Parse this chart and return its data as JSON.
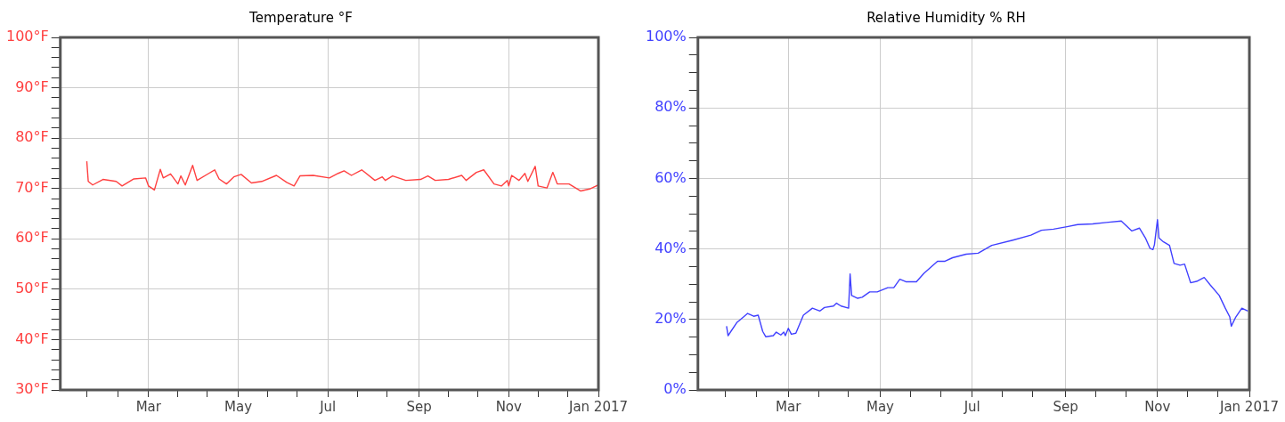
{
  "chart_data": [
    {
      "type": "line",
      "title": "Temperature °F",
      "xlim": [
        "2016-01-01",
        "2017-01-01"
      ],
      "xticks": [
        {
          "value": "2016-01-19",
          "label": null
        },
        {
          "value": "2016-02-09",
          "label": null
        },
        {
          "value": "2016-03-01",
          "label": "Mar"
        },
        {
          "value": "2016-03-21",
          "label": null
        },
        {
          "value": "2016-04-10",
          "label": null
        },
        {
          "value": "2016-05-01",
          "label": "May"
        },
        {
          "value": "2016-05-21",
          "label": null
        },
        {
          "value": "2016-06-10",
          "label": null
        },
        {
          "value": "2016-07-01",
          "label": "Jul"
        },
        {
          "value": "2016-07-21",
          "label": null
        },
        {
          "value": "2016-08-10",
          "label": null
        },
        {
          "value": "2016-09-01",
          "label": "Sep"
        },
        {
          "value": "2016-09-21",
          "label": null
        },
        {
          "value": "2016-10-11",
          "label": null
        },
        {
          "value": "2016-11-01",
          "label": "Nov"
        },
        {
          "value": "2016-11-21",
          "label": null
        },
        {
          "value": "2016-12-11",
          "label": null
        },
        {
          "value": "2017-01-01",
          "label": "Jan 2017"
        }
      ],
      "ylim": [
        30,
        100
      ],
      "yticks": [
        {
          "value": 30,
          "label": "30°F"
        },
        {
          "value": 32,
          "label": null
        },
        {
          "value": 34,
          "label": null
        },
        {
          "value": 36,
          "label": null
        },
        {
          "value": 38,
          "label": null
        },
        {
          "value": 40,
          "label": "40°F"
        },
        {
          "value": 42,
          "label": null
        },
        {
          "value": 44,
          "label": null
        },
        {
          "value": 46,
          "label": null
        },
        {
          "value": 48,
          "label": null
        },
        {
          "value": 50,
          "label": "50°F"
        },
        {
          "value": 52,
          "label": null
        },
        {
          "value": 54,
          "label": null
        },
        {
          "value": 56,
          "label": null
        },
        {
          "value": 58,
          "label": null
        },
        {
          "value": 60,
          "label": "60°F"
        },
        {
          "value": 62,
          "label": null
        },
        {
          "value": 64,
          "label": null
        },
        {
          "value": 66,
          "label": null
        },
        {
          "value": 68,
          "label": null
        },
        {
          "value": 70,
          "label": "70°F"
        },
        {
          "value": 72,
          "label": null
        },
        {
          "value": 74,
          "label": null
        },
        {
          "value": 76,
          "label": null
        },
        {
          "value": 78,
          "label": null
        },
        {
          "value": 80,
          "label": "80°F"
        },
        {
          "value": 82,
          "label": null
        },
        {
          "value": 84,
          "label": null
        },
        {
          "value": 86,
          "label": null
        },
        {
          "value": 88,
          "label": null
        },
        {
          "value": 90,
          "label": "90°F"
        },
        {
          "value": 92,
          "label": null
        },
        {
          "value": 94,
          "label": null
        },
        {
          "value": 96,
          "label": null
        },
        {
          "value": 98,
          "label": null
        },
        {
          "value": 100,
          "label": "100°F"
        }
      ],
      "grid": true,
      "legend": false,
      "marker": "none",
      "line_style": "solid",
      "series": [
        {
          "color": "#ff4040",
          "x": [
            "2016-01-19",
            "2016-01-20",
            "2016-01-23",
            "2016-01-30",
            "2016-02-08",
            "2016-02-12",
            "2016-02-20",
            "2016-02-28",
            "2016-03-01",
            "2016-03-05",
            "2016-03-09",
            "2016-03-11",
            "2016-03-16",
            "2016-03-21",
            "2016-03-23",
            "2016-03-26",
            "2016-03-31",
            "2016-04-03",
            "2016-04-11",
            "2016-04-15",
            "2016-04-18",
            "2016-04-23",
            "2016-04-28",
            "2016-05-03",
            "2016-05-10",
            "2016-05-17",
            "2016-05-27",
            "2016-06-03",
            "2016-06-08",
            "2016-06-12",
            "2016-06-21",
            "2016-07-02",
            "2016-07-08",
            "2016-07-12",
            "2016-07-17",
            "2016-07-24",
            "2016-08-02",
            "2016-08-07",
            "2016-08-09",
            "2016-08-14",
            "2016-08-23",
            "2016-09-02",
            "2016-09-07",
            "2016-09-12",
            "2016-09-21",
            "2016-09-30",
            "2016-10-03",
            "2016-10-10",
            "2016-10-15",
            "2016-10-22",
            "2016-10-27",
            "2016-10-31",
            "2016-11-01",
            "2016-11-03",
            "2016-11-08",
            "2016-11-12",
            "2016-11-14",
            "2016-11-19",
            "2016-11-21",
            "2016-11-27",
            "2016-12-01",
            "2016-12-04",
            "2016-12-12",
            "2016-12-20",
            "2016-12-26",
            "2017-01-01"
          ],
          "values": [
            75.4,
            71.4,
            70.7,
            71.8,
            71.4,
            70.5,
            71.9,
            72.1,
            70.5,
            69.7,
            73.8,
            72.1,
            72.9,
            70.9,
            72.5,
            70.7,
            74.6,
            71.6,
            73.0,
            73.7,
            71.9,
            70.9,
            72.3,
            72.8,
            71.1,
            71.4,
            72.6,
            71.2,
            70.5,
            72.5,
            72.6,
            72.1,
            73.0,
            73.5,
            72.6,
            73.7,
            71.6,
            72.3,
            71.6,
            72.5,
            71.6,
            71.8,
            72.5,
            71.6,
            71.8,
            72.6,
            71.6,
            73.2,
            73.7,
            70.9,
            70.5,
            71.6,
            70.5,
            72.6,
            71.6,
            73.0,
            71.4,
            74.4,
            70.5,
            70.1,
            73.2,
            70.9,
            70.9,
            69.5,
            69.9,
            70.7
          ]
        }
      ]
    },
    {
      "type": "line",
      "title": "Relative Humidity % RH",
      "xlim": [
        "2016-01-01",
        "2017-01-01"
      ],
      "xticks": [
        {
          "value": "2016-01-19",
          "label": null
        },
        {
          "value": "2016-02-09",
          "label": null
        },
        {
          "value": "2016-03-01",
          "label": "Mar"
        },
        {
          "value": "2016-03-21",
          "label": null
        },
        {
          "value": "2016-04-10",
          "label": null
        },
        {
          "value": "2016-05-01",
          "label": "May"
        },
        {
          "value": "2016-05-21",
          "label": null
        },
        {
          "value": "2016-06-10",
          "label": null
        },
        {
          "value": "2016-07-01",
          "label": "Jul"
        },
        {
          "value": "2016-07-21",
          "label": null
        },
        {
          "value": "2016-08-10",
          "label": null
        },
        {
          "value": "2016-09-01",
          "label": "Sep"
        },
        {
          "value": "2016-09-21",
          "label": null
        },
        {
          "value": "2016-10-11",
          "label": null
        },
        {
          "value": "2016-11-01",
          "label": "Nov"
        },
        {
          "value": "2016-11-21",
          "label": null
        },
        {
          "value": "2016-12-11",
          "label": null
        },
        {
          "value": "2017-01-01",
          "label": "Jan 2017"
        }
      ],
      "ylim": [
        0,
        100
      ],
      "yticks": [
        {
          "value": 0,
          "label": "0%"
        },
        {
          "value": 5,
          "label": null
        },
        {
          "value": 10,
          "label": null
        },
        {
          "value": 15,
          "label": null
        },
        {
          "value": 20,
          "label": "20%"
        },
        {
          "value": 25,
          "label": null
        },
        {
          "value": 30,
          "label": null
        },
        {
          "value": 35,
          "label": null
        },
        {
          "value": 40,
          "label": "40%"
        },
        {
          "value": 45,
          "label": null
        },
        {
          "value": 50,
          "label": null
        },
        {
          "value": 55,
          "label": null
        },
        {
          "value": 60,
          "label": "60%"
        },
        {
          "value": 65,
          "label": null
        },
        {
          "value": 70,
          "label": null
        },
        {
          "value": 75,
          "label": null
        },
        {
          "value": 80,
          "label": "80%"
        },
        {
          "value": 85,
          "label": null
        },
        {
          "value": 90,
          "label": null
        },
        {
          "value": 95,
          "label": null
        },
        {
          "value": 100,
          "label": "100%"
        }
      ],
      "grid": true,
      "legend": false,
      "marker": "none",
      "line_style": "solid",
      "series": [
        {
          "color": "#4040ff",
          "x": [
            "2016-01-20",
            "2016-01-21",
            "2016-01-27",
            "2016-01-29",
            "2016-02-03",
            "2016-02-07",
            "2016-02-10",
            "2016-02-13",
            "2016-02-15",
            "2016-02-20",
            "2016-02-22",
            "2016-02-25",
            "2016-02-27",
            "2016-02-28",
            "2016-03-01",
            "2016-03-03",
            "2016-03-06",
            "2016-03-11",
            "2016-03-17",
            "2016-03-22",
            "2016-03-25",
            "2016-03-31",
            "2016-04-02",
            "2016-04-05",
            "2016-04-10",
            "2016-04-11",
            "2016-04-12",
            "2016-04-16",
            "2016-04-19",
            "2016-04-24",
            "2016-04-29",
            "2016-05-06",
            "2016-05-10",
            "2016-05-14",
            "2016-05-18",
            "2016-05-25",
            "2016-05-30",
            "2016-06-08",
            "2016-06-13",
            "2016-06-18",
            "2016-06-27",
            "2016-07-05",
            "2016-07-14",
            "2016-07-28",
            "2016-08-09",
            "2016-08-16",
            "2016-08-24",
            "2016-09-02",
            "2016-09-09",
            "2016-09-19",
            "2016-09-28",
            "2016-10-08",
            "2016-10-10",
            "2016-10-15",
            "2016-10-20",
            "2016-10-24",
            "2016-10-27",
            "2016-10-29",
            "2016-10-30",
            "2016-11-01",
            "2016-11-02",
            "2016-11-05",
            "2016-11-09",
            "2016-11-12",
            "2016-11-16",
            "2016-11-19",
            "2016-11-23",
            "2016-11-27",
            "2016-12-02",
            "2016-12-06",
            "2016-12-12",
            "2016-12-16",
            "2016-12-19",
            "2016-12-20",
            "2016-12-23",
            "2016-12-27",
            "2016-12-31"
          ],
          "values": [
            18.1,
            15.4,
            19.2,
            19.9,
            21.7,
            20.9,
            21.2,
            16.6,
            15.1,
            15.4,
            16.4,
            15.6,
            16.4,
            15.4,
            17.5,
            15.8,
            16.1,
            21.2,
            23.2,
            22.4,
            23.4,
            23.8,
            24.6,
            23.8,
            23.2,
            32.9,
            26.8,
            26.0,
            26.3,
            27.8,
            27.8,
            29.0,
            29.0,
            31.4,
            30.7,
            30.7,
            33.1,
            36.5,
            36.5,
            37.5,
            38.5,
            38.8,
            41.0,
            42.5,
            43.9,
            45.3,
            45.6,
            46.3,
            46.9,
            47.1,
            47.5,
            47.9,
            47.1,
            45.1,
            45.9,
            43.1,
            40.2,
            39.8,
            41.2,
            48.3,
            43.1,
            42.0,
            41.0,
            35.9,
            35.4,
            35.7,
            30.4,
            30.8,
            31.9,
            29.8,
            26.8,
            23.2,
            20.7,
            18.1,
            20.7,
            23.2,
            22.4
          ]
        }
      ]
    }
  ]
}
